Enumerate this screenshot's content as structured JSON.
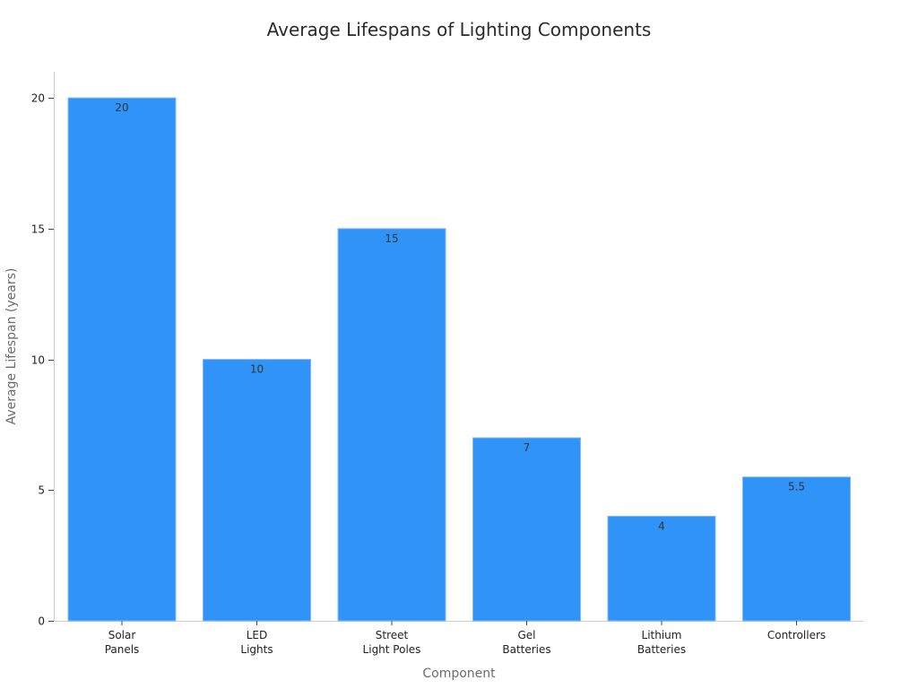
{
  "chart_data": {
    "type": "bar",
    "title": "Average Lifespans of Lighting Components",
    "xlabel": "Component",
    "ylabel": "Average Lifespan (years)",
    "categories": [
      [
        "Solar",
        "Panels"
      ],
      [
        "LED",
        "Lights"
      ],
      [
        "Street",
        "Light Poles"
      ],
      [
        "Gel",
        "Batteries"
      ],
      [
        "Lithium",
        "Batteries"
      ],
      [
        "Controllers"
      ]
    ],
    "values": [
      20,
      10,
      15,
      7,
      4,
      5.5
    ],
    "value_labels": [
      "20",
      "10",
      "15",
      "7",
      "4",
      "5.5"
    ],
    "ylim": [
      0,
      21
    ],
    "yticks": [
      0,
      5,
      10,
      15,
      20
    ],
    "grid": false,
    "bar_color": "#3093f8"
  }
}
